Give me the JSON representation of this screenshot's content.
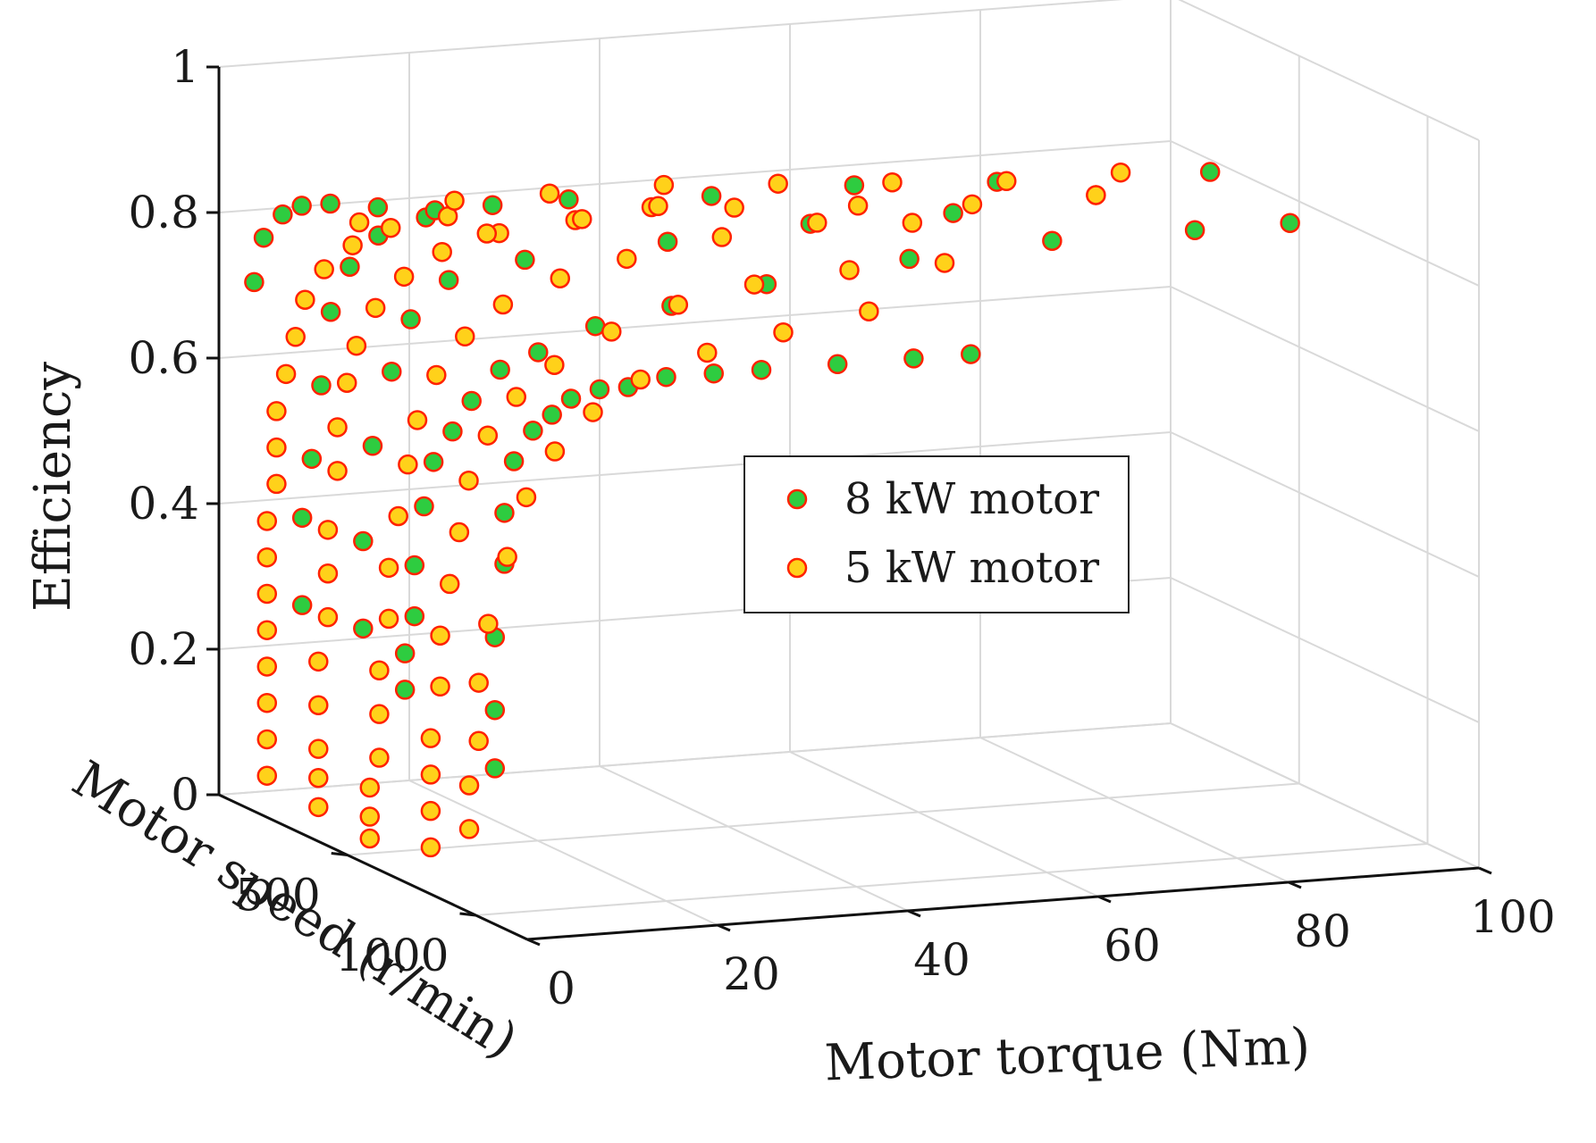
{
  "chart_data": {
    "type": "scatter3d",
    "title": "",
    "xlabel": "Motor torque (Nm)",
    "ylabel": "Motor speed (r/min)",
    "zlabel": "Efficiency",
    "xlim": [
      0,
      100
    ],
    "ylim": [
      0,
      1200
    ],
    "zlim": [
      0,
      1
    ],
    "x_ticks": [
      "0",
      "20",
      "40",
      "60",
      "80",
      "100"
    ],
    "y_ticks": [
      "500",
      "1000"
    ],
    "z_ticks": [
      "0",
      "0.2",
      "0.4",
      "0.6",
      "0.8",
      "1"
    ],
    "grid": true,
    "legend_position": "center-right",
    "series": [
      {
        "name": "8 kW motor",
        "fill": "#2ecc40",
        "edge": "#ff2200",
        "points": [
          [
            2,
            1000,
            0.2
          ],
          [
            2,
            1000,
            0.28
          ],
          [
            2,
            1000,
            0.38
          ],
          [
            3,
            1000,
            0.48
          ],
          [
            3,
            1000,
            0.55
          ],
          [
            4,
            1000,
            0.62
          ],
          [
            6,
            1000,
            0.66
          ],
          [
            8,
            1000,
            0.68
          ],
          [
            10,
            1000,
            0.7
          ],
          [
            13,
            1000,
            0.71
          ],
          [
            16,
            1000,
            0.71
          ],
          [
            20,
            1000,
            0.72
          ],
          [
            25,
            1000,
            0.72
          ],
          [
            30,
            1000,
            0.72
          ],
          [
            38,
            1000,
            0.72
          ],
          [
            46,
            1000,
            0.72
          ],
          [
            52,
            1000,
            0.72
          ],
          [
            2,
            650,
            0.25
          ],
          [
            2,
            650,
            0.3
          ],
          [
            3,
            650,
            0.35
          ],
          [
            3,
            650,
            0.42
          ],
          [
            4,
            650,
            0.5
          ],
          [
            5,
            650,
            0.56
          ],
          [
            7,
            650,
            0.6
          ],
          [
            9,
            650,
            0.64
          ],
          [
            12,
            650,
            0.68
          ],
          [
            16,
            650,
            0.7
          ],
          [
            22,
            650,
            0.73
          ],
          [
            30,
            650,
            0.75
          ],
          [
            40,
            650,
            0.77
          ],
          [
            55,
            650,
            0.79
          ],
          [
            70,
            650,
            0.8
          ],
          [
            85,
            650,
            0.8
          ],
          [
            95,
            650,
            0.8
          ],
          [
            3,
            450,
            0.3
          ],
          [
            3,
            450,
            0.42
          ],
          [
            4,
            450,
            0.55
          ],
          [
            6,
            450,
            0.65
          ],
          [
            8,
            450,
            0.72
          ],
          [
            12,
            450,
            0.77
          ],
          [
            20,
            450,
            0.79
          ],
          [
            35,
            450,
            0.8
          ],
          [
            50,
            450,
            0.81
          ],
          [
            65,
            450,
            0.81
          ],
          [
            80,
            450,
            0.82
          ],
          [
            92,
            450,
            0.84
          ],
          [
            2,
            250,
            0.3
          ],
          [
            2,
            250,
            0.42
          ],
          [
            3,
            250,
            0.5
          ],
          [
            4,
            250,
            0.6
          ],
          [
            5,
            250,
            0.7
          ],
          [
            7,
            250,
            0.76
          ],
          [
            10,
            250,
            0.8
          ],
          [
            15,
            250,
            0.82
          ],
          [
            22,
            250,
            0.83
          ],
          [
            30,
            250,
            0.83
          ],
          [
            45,
            250,
            0.82
          ],
          [
            60,
            250,
            0.82
          ],
          [
            75,
            250,
            0.81
          ],
          [
            1,
            100,
            0.72
          ],
          [
            2,
            100,
            0.78
          ],
          [
            4,
            100,
            0.81
          ],
          [
            6,
            100,
            0.82
          ],
          [
            9,
            100,
            0.82
          ],
          [
            14,
            100,
            0.81
          ],
          [
            20,
            100,
            0.8
          ]
        ]
      },
      {
        "name": "5 kW motor",
        "fill": "#ffd11a",
        "edge": "#ff2200",
        "points": [
          [
            1,
            150,
            0.05
          ],
          [
            1,
            150,
            0.1
          ],
          [
            1,
            150,
            0.15
          ],
          [
            1,
            150,
            0.2
          ],
          [
            1,
            150,
            0.25
          ],
          [
            1,
            150,
            0.3
          ],
          [
            1,
            150,
            0.35
          ],
          [
            1,
            150,
            0.4
          ],
          [
            2,
            150,
            0.45
          ],
          [
            2,
            150,
            0.5
          ],
          [
            2,
            150,
            0.55
          ],
          [
            3,
            150,
            0.6
          ],
          [
            4,
            150,
            0.65
          ],
          [
            5,
            150,
            0.7
          ],
          [
            7,
            150,
            0.74
          ],
          [
            10,
            150,
            0.77
          ],
          [
            14,
            150,
            0.79
          ],
          [
            20,
            150,
            0.8
          ],
          [
            1,
            350,
            0.04
          ],
          [
            1,
            350,
            0.08
          ],
          [
            1,
            350,
            0.12
          ],
          [
            1,
            350,
            0.18
          ],
          [
            1,
            350,
            0.24
          ],
          [
            2,
            350,
            0.3
          ],
          [
            2,
            350,
            0.36
          ],
          [
            2,
            350,
            0.42
          ],
          [
            3,
            350,
            0.5
          ],
          [
            3,
            350,
            0.56
          ],
          [
            4,
            350,
            0.62
          ],
          [
            5,
            350,
            0.67
          ],
          [
            7,
            350,
            0.72
          ],
          [
            10,
            350,
            0.76
          ],
          [
            14,
            350,
            0.79
          ],
          [
            20,
            350,
            0.81
          ],
          [
            28,
            350,
            0.82
          ],
          [
            36,
            350,
            0.83
          ],
          [
            1,
            550,
            0.03
          ],
          [
            1,
            550,
            0.06
          ],
          [
            1,
            550,
            0.1
          ],
          [
            2,
            550,
            0.14
          ],
          [
            2,
            550,
            0.2
          ],
          [
            2,
            550,
            0.26
          ],
          [
            3,
            550,
            0.33
          ],
          [
            3,
            550,
            0.4
          ],
          [
            4,
            550,
            0.47
          ],
          [
            5,
            550,
            0.54
          ],
          [
            6,
            550,
            0.6
          ],
          [
            8,
            550,
            0.66
          ],
          [
            11,
            550,
            0.71
          ],
          [
            15,
            550,
            0.75
          ],
          [
            21,
            550,
            0.78
          ],
          [
            28,
            550,
            0.8
          ],
          [
            38,
            550,
            0.82
          ],
          [
            48,
            550,
            0.83
          ],
          [
            58,
            550,
            0.82
          ],
          [
            2,
            750,
            0.05
          ],
          [
            2,
            750,
            0.1
          ],
          [
            2,
            750,
            0.15
          ],
          [
            2,
            750,
            0.2
          ],
          [
            3,
            750,
            0.27
          ],
          [
            3,
            750,
            0.34
          ],
          [
            4,
            750,
            0.41
          ],
          [
            5,
            750,
            0.48
          ],
          [
            6,
            750,
            0.55
          ],
          [
            8,
            750,
            0.61
          ],
          [
            11,
            750,
            0.66
          ],
          [
            15,
            750,
            0.7
          ],
          [
            21,
            750,
            0.74
          ],
          [
            28,
            750,
            0.77
          ],
          [
            36,
            750,
            0.79
          ],
          [
            46,
            750,
            0.8
          ],
          [
            56,
            750,
            0.8
          ],
          [
            2,
            900,
            0.1
          ],
          [
            2,
            900,
            0.16
          ],
          [
            3,
            900,
            0.22
          ],
          [
            3,
            900,
            0.3
          ],
          [
            4,
            900,
            0.38
          ],
          [
            6,
            900,
            0.47
          ],
          [
            8,
            900,
            0.55
          ],
          [
            11,
            900,
            0.61
          ],
          [
            15,
            900,
            0.66
          ],
          [
            20,
            900,
            0.7
          ],
          [
            27,
            900,
            0.73
          ],
          [
            35,
            900,
            0.75
          ],
          [
            44,
            900,
            0.77
          ],
          [
            8,
            250,
            0.82
          ],
          [
            18,
            250,
            0.84
          ],
          [
            28,
            250,
            0.84
          ],
          [
            40,
            250,
            0.84
          ],
          [
            52,
            250,
            0.83
          ],
          [
            64,
            250,
            0.82
          ],
          [
            76,
            250,
            0.81
          ],
          [
            88,
            250,
            0.81
          ],
          [
            16,
            450,
            0.83
          ],
          [
            26,
            450,
            0.84
          ],
          [
            34,
            450,
            0.85
          ],
          [
            42,
            450,
            0.84
          ],
          [
            55,
            450,
            0.83
          ],
          [
            67,
            450,
            0.82
          ],
          [
            80,
            450,
            0.82
          ]
        ]
      }
    ]
  },
  "legend": {
    "items": [
      "8 kW motor",
      "5 kW motor"
    ]
  }
}
